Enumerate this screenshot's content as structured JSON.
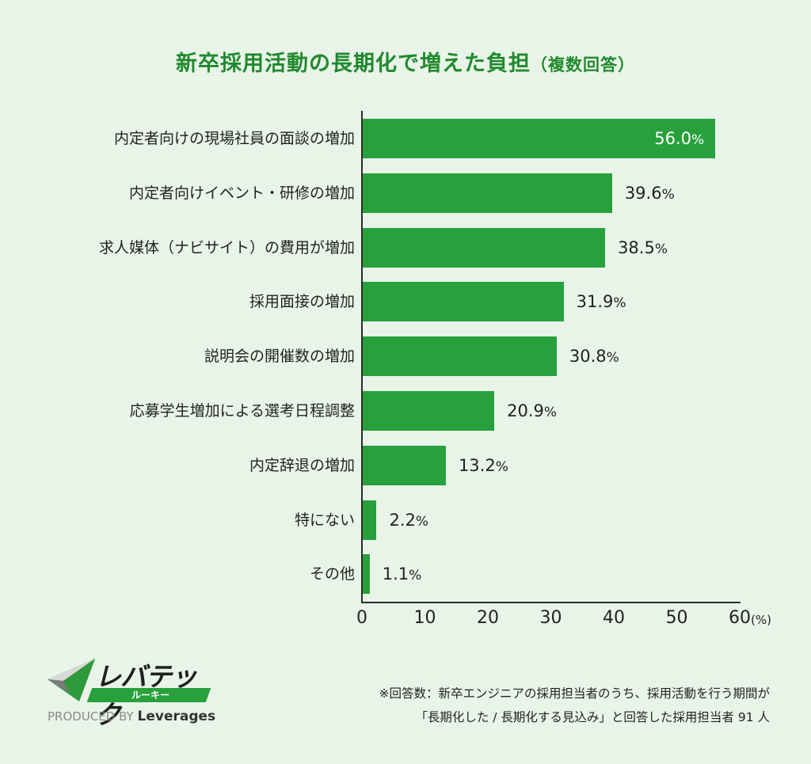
{
  "title": {
    "main": "新卒採用活動の長期化で増えた負担",
    "sub": "（複数回答）"
  },
  "chart_data": {
    "type": "bar",
    "orientation": "horizontal",
    "title": "新卒採用活動の長期化で増えた負担（複数回答）",
    "categories": [
      "内定者向けの現場社員の面談の増加",
      "内定者向けイベント・研修の増加",
      "求人媒体（ナビサイト）の費用が増加",
      "採用面接の増加",
      "説明会の開催数の増加",
      "応募学生増加による選考日程調整",
      "内定辞退の増加",
      "特にない",
      "その他"
    ],
    "values": [
      56.0,
      39.6,
      38.5,
      31.9,
      30.8,
      20.9,
      13.2,
      2.2,
      1.1
    ],
    "value_labels": [
      "56.0",
      "39.6",
      "38.5",
      "31.9",
      "30.8",
      "20.9",
      "13.2",
      "2.2",
      "1.1"
    ],
    "value_suffix": "%",
    "xlabel": "(%)",
    "ylabel": "",
    "xlim": [
      0,
      60
    ],
    "xticks": [
      "0",
      "10",
      "20",
      "30",
      "40",
      "50",
      "60"
    ],
    "grid": false,
    "legend": null,
    "bar_color": "#28a03b"
  },
  "axis": {
    "unit": "(%)"
  },
  "logo": {
    "name": "レバテック",
    "band": "ルーキー",
    "produced_by": "PRODUCED BY",
    "company": "Leverages"
  },
  "note": {
    "line1": "※回答数：新卒エンジニアの採用担当者のうち、採用活動を行う期間が",
    "line2": "「長期化した / 長期化する見込み」と回答した採用担当者 91 人"
  },
  "colors": {
    "background": "#e8f4e8",
    "accent": "#21892f",
    "bar": "#28a03b"
  }
}
